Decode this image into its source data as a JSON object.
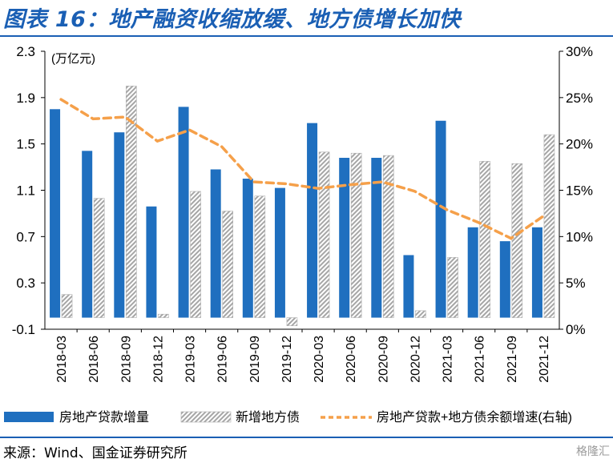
{
  "title": "图表 16：地产融资收缩放缓、地方债增长加快",
  "source": "来源：Wind、国金证券研究所",
  "watermark": "格隆汇",
  "colors": {
    "bar": "#1f6fbf",
    "hatch": "#a6a6a6",
    "line": "#f5a04a",
    "title": "#1a5fb4"
  },
  "chart_data": {
    "type": "bar",
    "categories": [
      "2018-03",
      "2018-06",
      "2018-09",
      "2018-12",
      "2019-03",
      "2019-06",
      "2019-09",
      "2019-12",
      "2020-03",
      "2020-06",
      "2020-09",
      "2020-12",
      "2021-03",
      "2021-06",
      "2021-09",
      "2021-12"
    ],
    "series": [
      {
        "name": "房地产贷款增量",
        "type": "bar",
        "axis": "left",
        "values": [
          1.8,
          1.44,
          1.6,
          0.96,
          1.82,
          1.28,
          1.2,
          1.12,
          1.68,
          1.38,
          1.38,
          0.54,
          1.7,
          0.78,
          0.66,
          0.78
        ]
      },
      {
        "name": "新增地方债",
        "type": "bar-hatched",
        "axis": "left",
        "values": [
          0.2,
          1.03,
          2.0,
          0.03,
          1.09,
          0.92,
          1.05,
          -0.07,
          1.43,
          1.42,
          1.4,
          0.06,
          0.52,
          1.35,
          1.33,
          1.58
        ]
      },
      {
        "name": "房地产贷款+地方债余额增速(右轴)",
        "type": "line",
        "axis": "right",
        "values": [
          24.8,
          22.7,
          22.9,
          20.3,
          21.5,
          19.7,
          15.9,
          15.7,
          15.2,
          15.6,
          15.9,
          14.9,
          12.9,
          11.5,
          9.8,
          12.2
        ]
      }
    ],
    "y_left": {
      "unit_label": "(万亿元)",
      "min": -0.1,
      "max": 2.3,
      "ticks": [
        "-0.1",
        "0.3",
        "0.7",
        "1.1",
        "1.5",
        "1.9",
        "2.3"
      ]
    },
    "y_right": {
      "min": 0,
      "max": 30,
      "ticks": [
        "0%",
        "5%",
        "10%",
        "15%",
        "20%",
        "25%",
        "30%"
      ]
    },
    "legend": [
      "房地产贷款增量",
      "新增地方债",
      "房地产贷款+地方债余额增速(右轴)"
    ]
  }
}
